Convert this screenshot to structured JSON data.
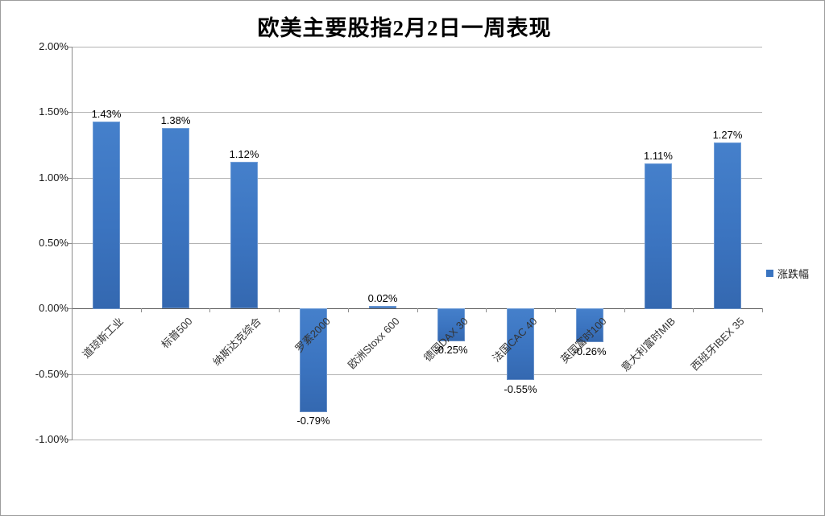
{
  "title": "欧美主要股指2月2日一周表现",
  "legend": {
    "label": "涨跌幅",
    "swatch_color": "#3a74c0"
  },
  "chart_data": {
    "type": "bar",
    "title": "欧美主要股指2月2日一周表现",
    "categories": [
      "道琼斯工业",
      "标普500",
      "纳斯达克综合",
      "罗素2000",
      "欧洲Stoxx 600",
      "德国DAX 30",
      "法国CAC 40",
      "英国富时100",
      "意大利富时MIB",
      "西班牙IBEX 35"
    ],
    "series": [
      {
        "name": "涨跌幅",
        "values": [
          1.43,
          1.38,
          1.12,
          -0.79,
          0.02,
          -0.25,
          -0.55,
          -0.26,
          1.11,
          1.27
        ]
      }
    ],
    "data_labels": [
      "1.43%",
      "1.38%",
      "1.12%",
      "-0.79%",
      "0.02%",
      "-0.25%",
      "-0.55%",
      "-0.26%",
      "1.11%",
      "1.27%"
    ],
    "y_axis": {
      "ticks": [
        {
          "label": "2.00%",
          "value": 2.0
        },
        {
          "label": "1.50%",
          "value": 1.5
        },
        {
          "label": "1.00%",
          "value": 1.0
        },
        {
          "label": "0.50%",
          "value": 0.5
        },
        {
          "label": "0.00%",
          "value": 0.0
        },
        {
          "label": "-0.50%",
          "value": -0.5
        },
        {
          "label": "-1.00%",
          "value": -1.0
        }
      ]
    },
    "ylim": [
      -1.0,
      2.0
    ],
    "grid": "horizontal",
    "legend_position": "right",
    "bar_color": "#3a74c0",
    "xlabel": "",
    "ylabel": ""
  }
}
